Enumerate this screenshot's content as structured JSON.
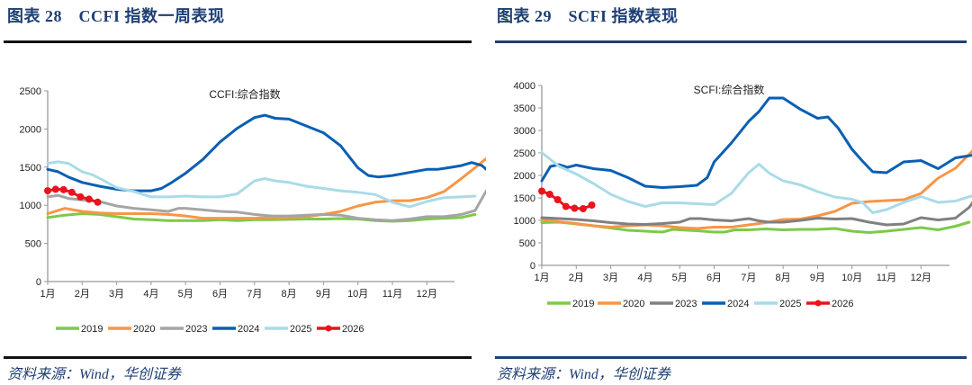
{
  "panels": [
    {
      "figure_title": "图表 28　CCFI 指数一周表现",
      "source": "资料来源：Wind，华创证券"
    },
    {
      "figure_title": "图表 29　SCFI 指数表现",
      "source": "资料来源：Wind，华创证券"
    }
  ],
  "chart_data": [
    {
      "type": "line",
      "title": "CCFI:综合指数",
      "xlabel": "",
      "ylabel": "",
      "x_unit": "months since Jan 1",
      "xlim": [
        0,
        12.85
      ],
      "ylim": [
        0,
        2500
      ],
      "yticks": [
        0,
        500,
        1000,
        1500,
        2000,
        2500
      ],
      "xtick_labels": [
        "1月",
        "2月",
        "3月",
        "4月",
        "5月",
        "6月",
        "7月",
        "8月",
        "9月",
        "10月",
        "11月",
        "12月"
      ],
      "grid": false,
      "legend": "bottom",
      "series": [
        {
          "name": "2019",
          "color": "#7dc94a",
          "marker": false,
          "x": [
            0,
            0.5,
            1,
            1.5,
            2,
            2.5,
            3,
            3.5,
            4,
            4.5,
            5,
            5.5,
            6,
            6.5,
            7,
            7.5,
            8,
            8.5,
            9,
            9.5,
            10,
            10.5,
            11,
            11.5,
            12,
            12.4
          ],
          "y": [
            840,
            870,
            890,
            880,
            850,
            820,
            810,
            800,
            800,
            800,
            810,
            800,
            810,
            810,
            815,
            820,
            820,
            825,
            820,
            800,
            790,
            800,
            820,
            830,
            840,
            880
          ]
        },
        {
          "name": "2020",
          "color": "#f79646",
          "marker": false,
          "x": [
            0,
            0.5,
            1,
            1.5,
            2,
            2.5,
            3,
            3.5,
            4,
            4.5,
            5,
            5.5,
            6,
            6.5,
            7,
            7.5,
            8,
            8.5,
            9,
            9.5,
            10,
            10.5,
            11,
            11.5,
            12,
            12.5,
            12.85
          ],
          "y": [
            890,
            960,
            920,
            900,
            890,
            890,
            890,
            880,
            860,
            830,
            830,
            830,
            830,
            840,
            840,
            850,
            880,
            920,
            990,
            1040,
            1060,
            1060,
            1100,
            1180,
            1350,
            1530,
            1660
          ]
        },
        {
          "name": "2023",
          "color": "#a5a5a5",
          "marker": false,
          "x": [
            0,
            0.3,
            0.6,
            1,
            1.5,
            2,
            2.5,
            3,
            3.5,
            3.8,
            4,
            4.5,
            5,
            5.5,
            6,
            6.5,
            7,
            7.5,
            8,
            8.5,
            9,
            9.5,
            10,
            10.5,
            11,
            11.5,
            12,
            12.4,
            12.85
          ],
          "y": [
            1110,
            1130,
            1090,
            1070,
            1050,
            990,
            960,
            940,
            920,
            960,
            960,
            940,
            920,
            910,
            880,
            860,
            860,
            870,
            880,
            870,
            830,
            810,
            800,
            820,
            850,
            850,
            880,
            930,
            1290
          ]
        },
        {
          "name": "2024",
          "color": "#0a5fb4",
          "marker": false,
          "x": [
            0,
            0.3,
            0.6,
            1,
            1.5,
            2,
            2.5,
            3,
            3.3,
            3.6,
            4,
            4.5,
            5,
            5.5,
            6,
            6.3,
            6.6,
            7,
            7.5,
            8,
            8.5,
            9,
            9.3,
            9.6,
            10,
            10.5,
            11,
            11.3,
            11.6,
            12,
            12.3,
            12.6,
            12.85
          ],
          "y": [
            1470,
            1440,
            1370,
            1300,
            1250,
            1210,
            1190,
            1190,
            1220,
            1300,
            1420,
            1600,
            1830,
            2010,
            2150,
            2180,
            2140,
            2130,
            2040,
            1950,
            1780,
            1490,
            1390,
            1370,
            1390,
            1430,
            1470,
            1470,
            1490,
            1520,
            1560,
            1520,
            1420
          ]
        },
        {
          "name": "2025",
          "color": "#a9dbe8",
          "marker": false,
          "x": [
            0,
            0.3,
            0.6,
            1,
            1.3,
            1.6,
            2,
            2.5,
            3,
            3.5,
            4,
            4.5,
            5,
            5.5,
            6,
            6.3,
            6.6,
            7,
            7.5,
            8,
            8.5,
            9,
            9.5,
            10,
            10.5,
            11,
            11.5,
            12,
            12.4
          ],
          "y": [
            1550,
            1570,
            1550,
            1440,
            1400,
            1330,
            1230,
            1180,
            1110,
            1110,
            1120,
            1110,
            1110,
            1150,
            1320,
            1350,
            1320,
            1300,
            1250,
            1220,
            1190,
            1170,
            1140,
            1040,
            980,
            1050,
            1100,
            1110,
            1120
          ]
        },
        {
          "name": "2026",
          "color": "#e8141e",
          "marker": true,
          "x": [
            0,
            0.23,
            0.46,
            0.7,
            0.95,
            1.2,
            1.45
          ],
          "y": [
            1190,
            1210,
            1205,
            1170,
            1110,
            1080,
            1040
          ]
        }
      ]
    },
    {
      "type": "line",
      "title": "SCFI:综合指数",
      "xlabel": "",
      "ylabel": "",
      "x_unit": "months since Jan 1",
      "xlim": [
        0,
        12.85
      ],
      "ylim": [
        0,
        4000
      ],
      "yticks": [
        0,
        500,
        1000,
        1500,
        2000,
        2500,
        3000,
        3500,
        4000
      ],
      "xtick_labels": [
        "1月",
        "2月",
        "3月",
        "4月",
        "5月",
        "6月",
        "7月",
        "8月",
        "9月",
        "10月",
        "11月",
        "12月"
      ],
      "grid": false,
      "legend": "bottom",
      "series": [
        {
          "name": "2019",
          "color": "#7dc94a",
          "marker": false,
          "x": [
            0,
            0.5,
            1,
            1.5,
            2,
            2.5,
            3,
            3.5,
            3.8,
            4,
            4.5,
            5,
            5.3,
            5.6,
            6,
            6.5,
            7,
            7.5,
            8,
            8.5,
            9,
            9.5,
            10,
            10.5,
            11,
            11.5,
            12,
            12.4
          ],
          "y": [
            950,
            960,
            920,
            880,
            830,
            780,
            760,
            740,
            800,
            790,
            770,
            740,
            740,
            790,
            790,
            810,
            790,
            800,
            800,
            820,
            760,
            730,
            760,
            800,
            840,
            790,
            870,
            960
          ]
        },
        {
          "name": "2020",
          "color": "#f79646",
          "marker": false,
          "x": [
            0,
            0.5,
            1,
            1.5,
            2,
            2.5,
            3,
            3.5,
            4,
            4.5,
            5,
            5.5,
            6,
            6.5,
            7,
            7.5,
            8,
            8.5,
            9,
            9.5,
            10,
            10.5,
            11,
            11.5,
            12,
            12.5,
            12.85
          ],
          "y": [
            1020,
            970,
            930,
            880,
            850,
            880,
            900,
            880,
            840,
            820,
            850,
            850,
            900,
            950,
            1020,
            1030,
            1100,
            1200,
            1380,
            1420,
            1440,
            1460,
            1600,
            1940,
            2160,
            2550,
            2790
          ]
        },
        {
          "name": "2023",
          "color": "#808080",
          "marker": false,
          "x": [
            0,
            0.5,
            1,
            1.5,
            2,
            2.5,
            3,
            3.5,
            4,
            4.3,
            4.6,
            5,
            5.5,
            6,
            6.3,
            6.6,
            7,
            7.5,
            8,
            8.5,
            9,
            9.5,
            10,
            10.5,
            11,
            11.5,
            12,
            12.4,
            12.85
          ],
          "y": [
            1060,
            1040,
            1020,
            990,
            950,
            920,
            910,
            930,
            960,
            1040,
            1040,
            1010,
            990,
            1040,
            990,
            960,
            960,
            1000,
            1050,
            1030,
            1040,
            960,
            900,
            920,
            1060,
            1010,
            1050,
            1290,
            1770
          ]
        },
        {
          "name": "2024",
          "color": "#0a5fb4",
          "marker": false,
          "x": [
            0,
            0.25,
            0.5,
            0.75,
            1,
            1.5,
            2,
            2.5,
            3,
            3.5,
            4,
            4.5,
            4.8,
            5,
            5.5,
            6,
            6.3,
            6.6,
            7,
            7.5,
            8,
            8.3,
            8.6,
            9,
            9.3,
            9.6,
            10,
            10.5,
            11,
            11.5,
            12,
            12.5,
            12.85
          ],
          "y": [
            1880,
            2200,
            2240,
            2180,
            2230,
            2150,
            2110,
            1950,
            1760,
            1730,
            1750,
            1780,
            1950,
            2300,
            2720,
            3200,
            3420,
            3720,
            3720,
            3470,
            3270,
            3300,
            3050,
            2580,
            2320,
            2080,
            2060,
            2300,
            2330,
            2150,
            2390,
            2450,
            2500
          ]
        },
        {
          "name": "2025",
          "color": "#a9dbe8",
          "marker": false,
          "x": [
            0,
            0.5,
            1,
            1.5,
            2,
            2.5,
            3,
            3.5,
            4,
            4.5,
            5,
            5.5,
            6,
            6.3,
            6.6,
            7,
            7.5,
            8,
            8.5,
            9,
            9.3,
            9.6,
            10,
            10.5,
            11,
            11.5,
            12,
            12.5,
            12.85
          ],
          "y": [
            2510,
            2200,
            2030,
            1820,
            1580,
            1420,
            1310,
            1390,
            1390,
            1370,
            1350,
            1600,
            2060,
            2250,
            2050,
            1880,
            1790,
            1640,
            1520,
            1470,
            1400,
            1170,
            1240,
            1400,
            1530,
            1400,
            1430,
            1550,
            1680
          ]
        },
        {
          "name": "2026",
          "color": "#e8141e",
          "marker": true,
          "x": [
            0,
            0.23,
            0.46,
            0.7,
            0.95,
            1.2,
            1.45
          ],
          "y": [
            1650,
            1580,
            1460,
            1310,
            1270,
            1260,
            1340
          ]
        }
      ]
    }
  ]
}
